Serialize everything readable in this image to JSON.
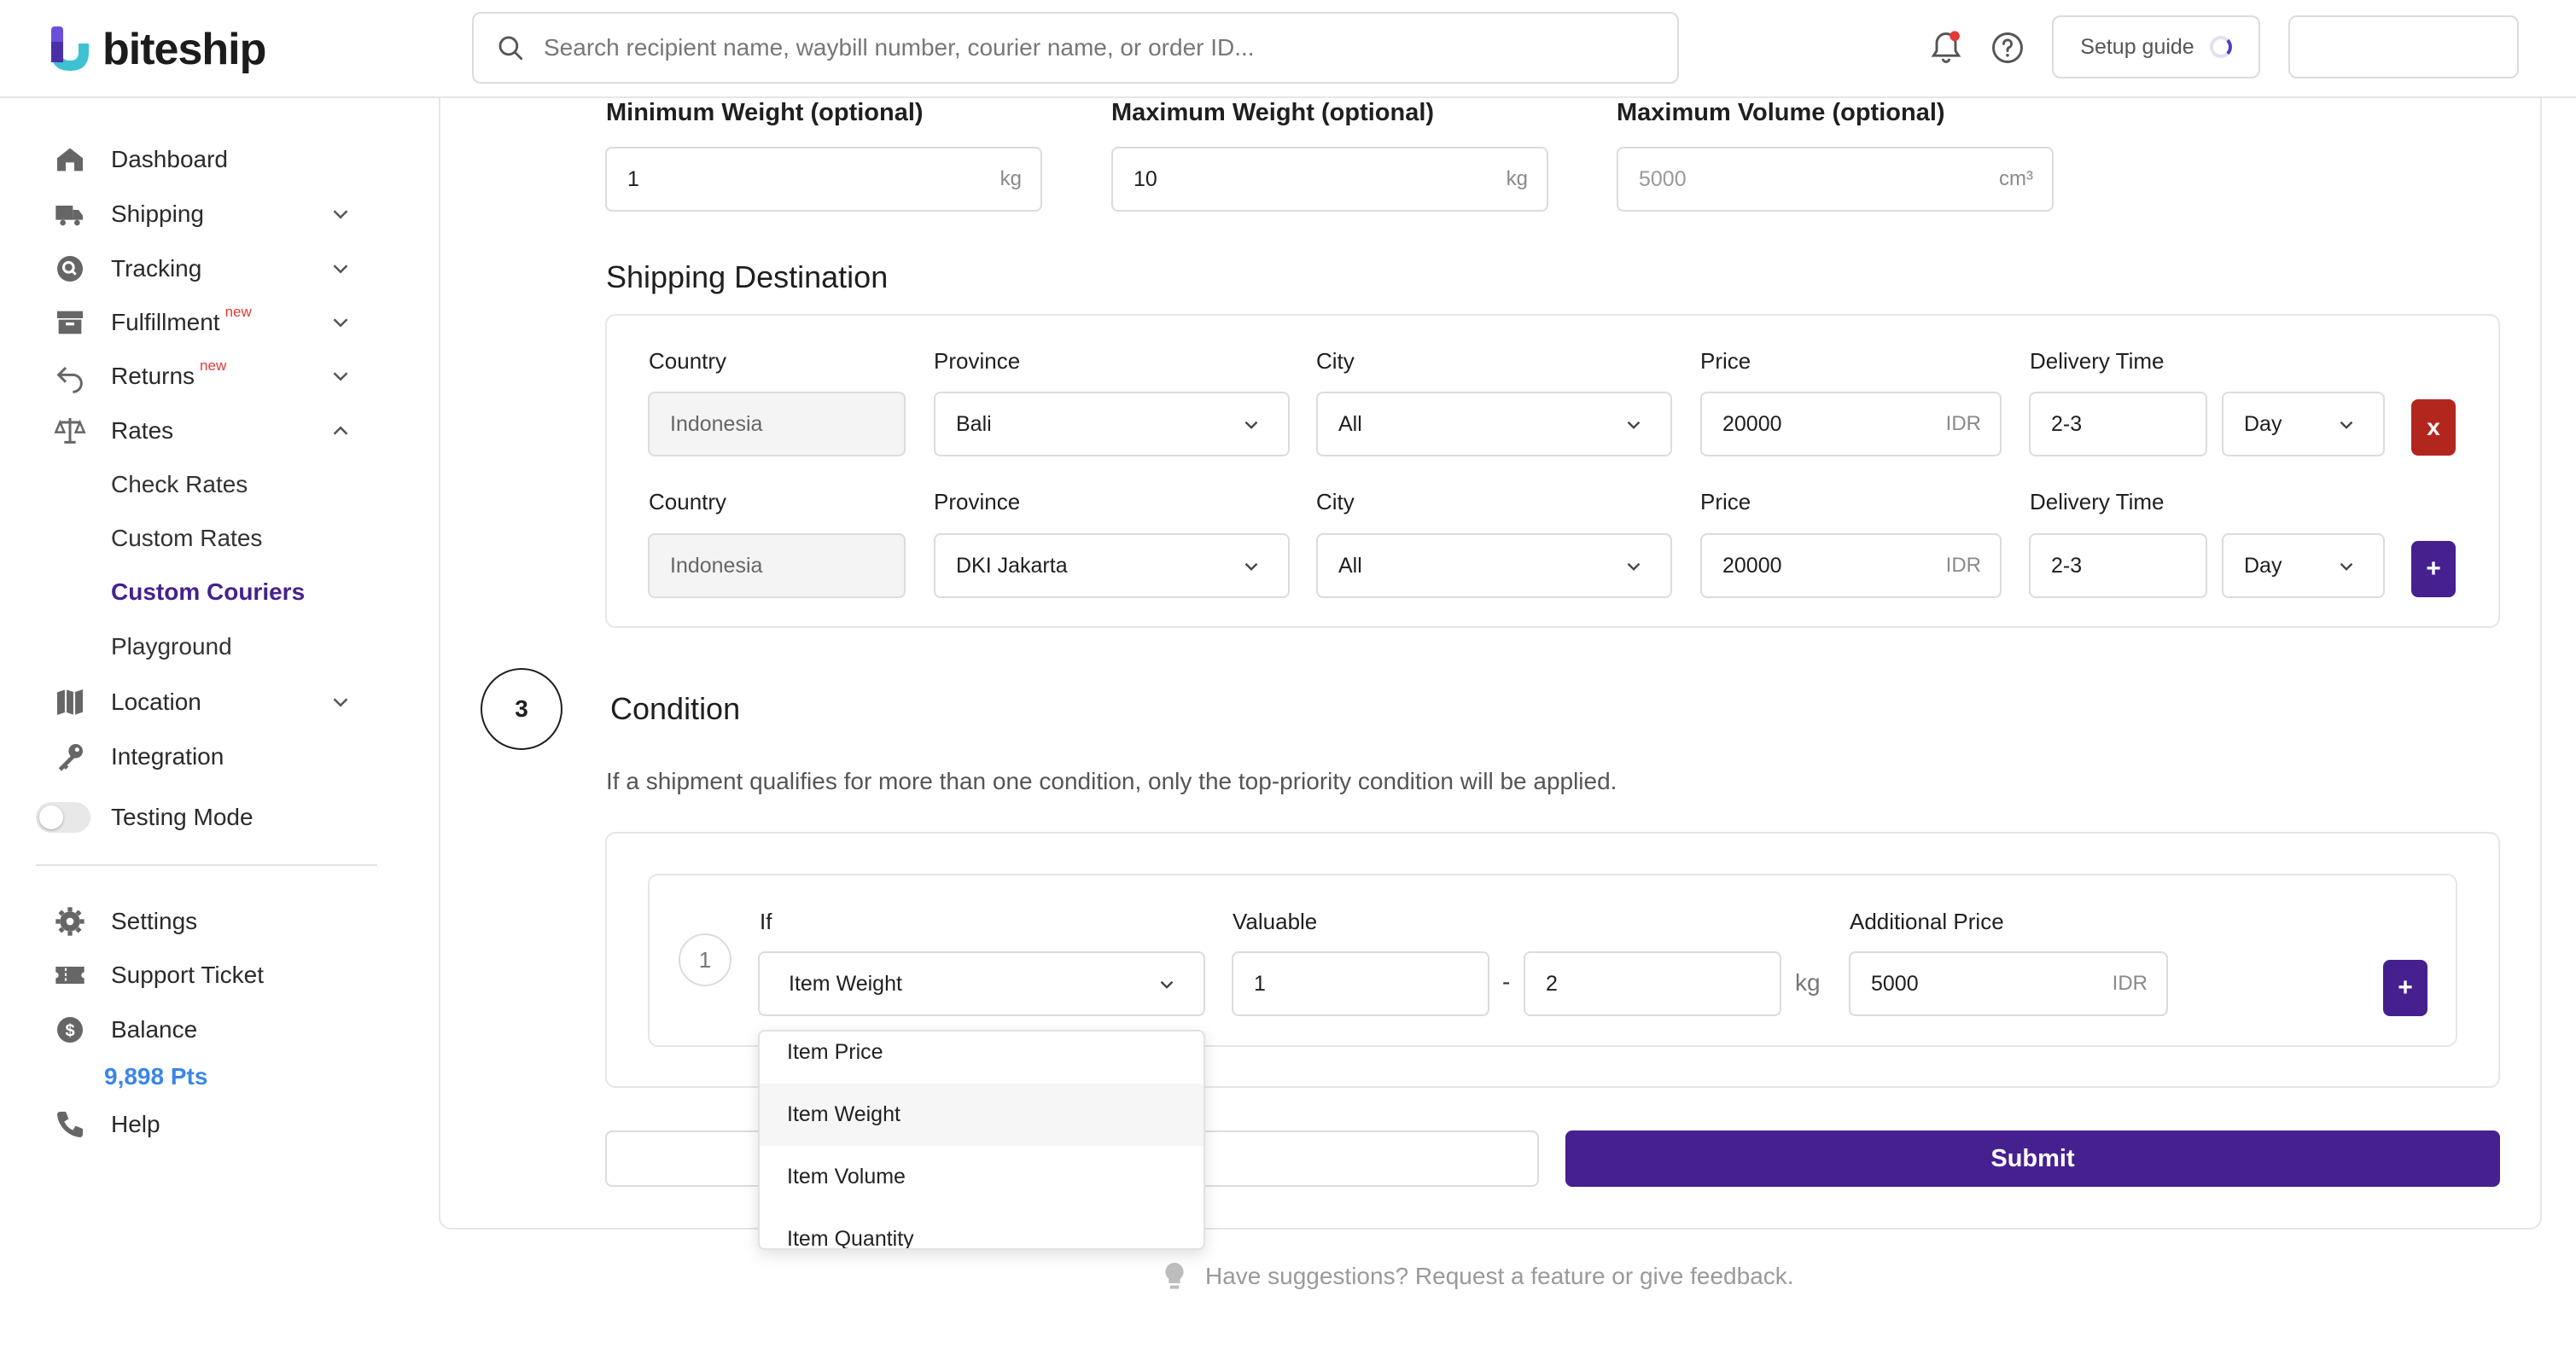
{
  "brand": {
    "name": "biteship",
    "accent": "#46208f"
  },
  "header": {
    "search_placeholder": "Search recipient name, waybill number, courier name, or order ID...",
    "setup_guide": "Setup guide"
  },
  "sidebar": {
    "dashboard": "Dashboard",
    "shipping": "Shipping",
    "tracking": "Tracking",
    "fulfillment": "Fulfillment",
    "returns": "Returns",
    "new_badge": "new",
    "rates": "Rates",
    "check_rates": "Check Rates",
    "custom_rates": "Custom Rates",
    "custom_couriers": "Custom Couriers",
    "playground": "Playground",
    "location": "Location",
    "integration": "Integration",
    "testing_mode": "Testing Mode",
    "settings": "Settings",
    "support_ticket": "Support Ticket",
    "balance": "Balance",
    "balance_pts": "9,898 Pts",
    "help": "Help"
  },
  "weights": {
    "min_label": "Minimum Weight (optional)",
    "min_value": "1",
    "max_label": "Maximum Weight (optional)",
    "max_value": "10",
    "vol_label": "Maximum Volume (optional)",
    "vol_placeholder": "5000",
    "unit_kg": "kg",
    "unit_cm3": "cm³"
  },
  "destination": {
    "title": "Shipping Destination",
    "labels": {
      "country": "Country",
      "province": "Province",
      "city": "City",
      "price": "Price",
      "delivery": "Delivery Time"
    },
    "price_unit": "IDR",
    "rows": [
      {
        "country": "Indonesia",
        "province": "Bali",
        "city": "All",
        "price": "20000",
        "delivery": "2-3",
        "unit": "Day",
        "action": "x"
      },
      {
        "country": "Indonesia",
        "province": "DKI Jakarta",
        "city": "All",
        "price": "20000",
        "delivery": "2-3",
        "unit": "Day",
        "action": "+"
      }
    ]
  },
  "condition": {
    "step": "3",
    "title": "Condition",
    "description": "If a shipment qualifies for more than one condition, only the top-priority condition will be applied.",
    "row_number": "1",
    "if_label": "If",
    "if_value": "Item Weight",
    "valuable_label": "Valuable",
    "from": "1",
    "dash": "-",
    "to": "2",
    "unit": "kg",
    "additional_label": "Additional Price",
    "additional_value": "5000",
    "additional_unit": "IDR",
    "add_button": "+",
    "options": [
      "Item Price",
      "Item Weight",
      "Item Volume",
      "Item Quantity"
    ]
  },
  "actions": {
    "submit": "Submit"
  },
  "feedback": "Have suggestions? Request a feature or give feedback."
}
